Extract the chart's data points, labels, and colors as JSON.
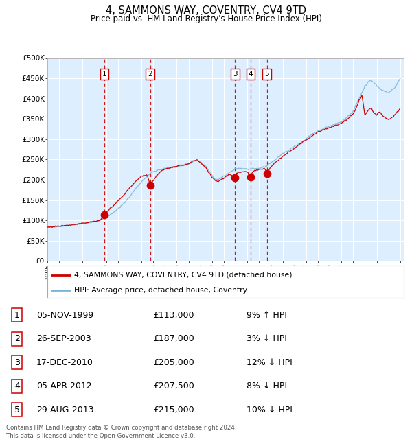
{
  "title": "4, SAMMONS WAY, COVENTRY, CV4 9TD",
  "subtitle": "Price paid vs. HM Land Registry's House Price Index (HPI)",
  "legend_line1": "4, SAMMONS WAY, COVENTRY, CV4 9TD (detached house)",
  "legend_line2": "HPI: Average price, detached house, Coventry",
  "footer_line1": "Contains HM Land Registry data © Crown copyright and database right 2024.",
  "footer_line2": "This data is licensed under the Open Government Licence v3.0.",
  "hpi_color": "#7ab4d8",
  "price_color": "#cc0000",
  "background_plot": "#ddeeff",
  "background_fig": "#ffffff",
  "grid_color": "#ffffff",
  "sale_dates_x": [
    1999.85,
    2003.74,
    2010.96,
    2012.27,
    2013.66
  ],
  "sale_prices_y": [
    113000,
    187000,
    205000,
    207500,
    215000
  ],
  "sale_labels": [
    "1",
    "2",
    "3",
    "4",
    "5"
  ],
  "table_rows": [
    [
      "1",
      "05-NOV-1999",
      "£113,000",
      "9% ↑ HPI"
    ],
    [
      "2",
      "26-SEP-2003",
      "£187,000",
      "3% ↓ HPI"
    ],
    [
      "3",
      "17-DEC-2010",
      "£205,000",
      "12% ↓ HPI"
    ],
    [
      "4",
      "05-APR-2012",
      "£207,500",
      "8% ↓ HPI"
    ],
    [
      "5",
      "29-AUG-2013",
      "£215,000",
      "10% ↓ HPI"
    ]
  ],
  "ylim": [
    0,
    500000
  ],
  "yticks": [
    0,
    50000,
    100000,
    150000,
    200000,
    250000,
    300000,
    350000,
    400000,
    450000,
    500000
  ],
  "ytick_labels": [
    "£0",
    "£50K",
    "£100K",
    "£150K",
    "£200K",
    "£250K",
    "£300K",
    "£350K",
    "£400K",
    "£450K",
    "£500K"
  ],
  "hpi_key_x": [
    1995.0,
    1996.0,
    1997.0,
    1998.0,
    1998.5,
    1999.0,
    1999.5,
    2000.0,
    2000.5,
    2001.0,
    2001.5,
    2002.0,
    2002.5,
    2003.0,
    2003.5,
    2003.75,
    2004.0,
    2004.5,
    2005.0,
    2005.5,
    2006.0,
    2006.5,
    2007.0,
    2007.25,
    2007.5,
    2007.75,
    2008.0,
    2008.5,
    2009.0,
    2009.25,
    2009.5,
    2010.0,
    2010.5,
    2011.0,
    2011.5,
    2012.0,
    2012.5,
    2013.0,
    2013.5,
    2014.0,
    2014.5,
    2015.0,
    2015.5,
    2016.0,
    2016.5,
    2017.0,
    2017.5,
    2018.0,
    2018.5,
    2019.0,
    2019.5,
    2020.0,
    2020.5,
    2021.0,
    2021.25,
    2021.5,
    2021.75,
    2022.0,
    2022.25,
    2022.5,
    2022.75,
    2023.0,
    2023.25,
    2023.5,
    2024.0,
    2024.5,
    2025.0
  ],
  "hpi_key_y": [
    82000,
    85000,
    88000,
    92000,
    94000,
    97000,
    100000,
    108000,
    116000,
    128000,
    142000,
    158000,
    178000,
    195000,
    210000,
    215000,
    220000,
    224000,
    228000,
    230000,
    232000,
    235000,
    238000,
    242000,
    246000,
    248000,
    244000,
    232000,
    210000,
    202000,
    200000,
    208000,
    218000,
    228000,
    228000,
    226000,
    226000,
    228000,
    232000,
    242000,
    252000,
    265000,
    272000,
    282000,
    290000,
    302000,
    312000,
    320000,
    326000,
    332000,
    338000,
    342000,
    355000,
    368000,
    385000,
    400000,
    415000,
    430000,
    440000,
    445000,
    440000,
    432000,
    425000,
    420000,
    415000,
    425000,
    450000
  ],
  "red_key_x": [
    1995.0,
    1996.0,
    1997.0,
    1998.0,
    1998.5,
    1999.0,
    1999.5,
    1999.85,
    2000.0,
    2000.5,
    2001.0,
    2001.5,
    2002.0,
    2002.5,
    2003.0,
    2003.5,
    2003.74,
    2004.0,
    2004.5,
    2005.0,
    2005.5,
    2006.0,
    2006.5,
    2007.0,
    2007.25,
    2007.5,
    2007.75,
    2008.0,
    2008.5,
    2009.0,
    2009.25,
    2009.5,
    2010.0,
    2010.5,
    2010.96,
    2011.0,
    2011.5,
    2012.0,
    2012.27,
    2012.5,
    2013.0,
    2013.5,
    2013.66,
    2014.0,
    2014.5,
    2015.0,
    2015.5,
    2016.0,
    2016.5,
    2017.0,
    2017.5,
    2018.0,
    2018.5,
    2019.0,
    2019.5,
    2020.0,
    2020.5,
    2021.0,
    2021.25,
    2021.5,
    2021.75,
    2022.0,
    2022.25,
    2022.5,
    2022.75,
    2023.0,
    2023.25,
    2023.5,
    2024.0,
    2024.5,
    2025.0
  ],
  "red_key_y": [
    83000,
    86000,
    89000,
    93000,
    95000,
    98000,
    100000,
    113000,
    120000,
    132000,
    148000,
    162000,
    180000,
    196000,
    208000,
    212000,
    187000,
    198000,
    218000,
    226000,
    230000,
    233000,
    236000,
    240000,
    244000,
    247000,
    248000,
    242000,
    228000,
    205000,
    198000,
    196000,
    204000,
    214000,
    205000,
    216000,
    220000,
    220000,
    207500,
    222000,
    225000,
    228000,
    215000,
    232000,
    245000,
    258000,
    268000,
    278000,
    288000,
    298000,
    308000,
    318000,
    324000,
    328000,
    334000,
    338000,
    350000,
    362000,
    378000,
    395000,
    408000,
    358000,
    370000,
    378000,
    365000,
    360000,
    368000,
    358000,
    348000,
    358000,
    375000
  ]
}
